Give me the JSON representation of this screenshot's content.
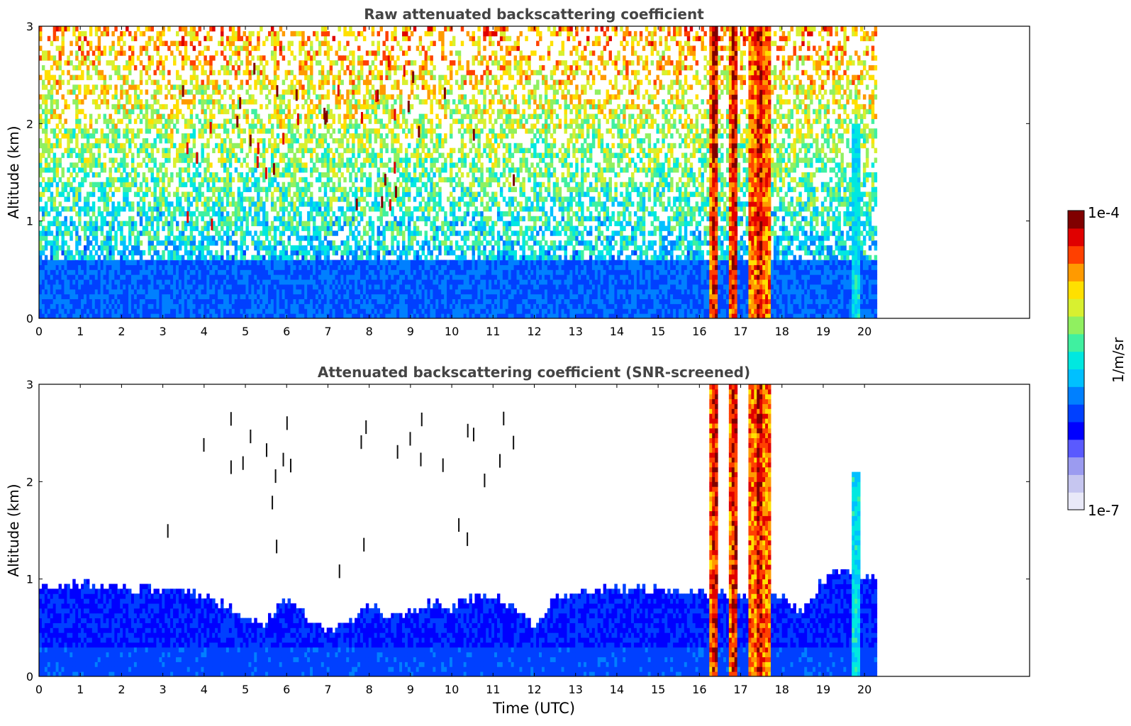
{
  "chart_data": [
    {
      "type": "heatmap",
      "title": "Raw attenuated backscattering coefficient",
      "xlabel": "",
      "ylabel": "Altitude (km)",
      "xlim": [
        0,
        24
      ],
      "ylim": [
        0,
        3
      ],
      "x_ticks": [
        0,
        1,
        2,
        3,
        4,
        5,
        6,
        7,
        8,
        9,
        10,
        11,
        12,
        13,
        14,
        15,
        16,
        17,
        18,
        19,
        20
      ],
      "y_ticks": [
        0,
        1,
        2,
        3
      ],
      "data_end_time": 20.3,
      "features": [
        {
          "kind": "boundary_layer",
          "x_range": [
            0,
            20.3
          ],
          "top": 0.6
        },
        {
          "kind": "cloud_columns",
          "x_ranges": [
            [
              16.25,
              16.45
            ],
            [
              16.7,
              16.95
            ],
            [
              17.2,
              17.7
            ]
          ],
          "y_range": [
            0,
            3
          ]
        },
        {
          "kind": "aerosol_column",
          "x_range": [
            19.7,
            19.9
          ],
          "y_range": [
            0,
            2.0
          ]
        },
        {
          "kind": "scattered_high_returns",
          "x_range": [
            3,
            12
          ],
          "y_range": [
            0.9,
            2.7
          ]
        }
      ]
    },
    {
      "type": "heatmap",
      "title": "Attenuated backscattering coefficient (SNR-screened)",
      "xlabel": "Time (UTC)",
      "ylabel": "Altitude (km)",
      "xlim": [
        0,
        24
      ],
      "ylim": [
        0,
        3
      ],
      "x_ticks": [
        0,
        1,
        2,
        3,
        4,
        5,
        6,
        7,
        8,
        9,
        10,
        11,
        12,
        13,
        14,
        15,
        16,
        17,
        18,
        19,
        20
      ],
      "y_ticks": [
        0,
        1,
        2,
        3
      ],
      "data_end_time": 20.3,
      "mixing_layer_top_km": [
        [
          0,
          0.95
        ],
        [
          1,
          0.95
        ],
        [
          2,
          0.9
        ],
        [
          3,
          0.9
        ],
        [
          4,
          0.85
        ],
        [
          5,
          0.6
        ],
        [
          5.5,
          0.55
        ],
        [
          6,
          0.8
        ],
        [
          6.5,
          0.6
        ],
        [
          7,
          0.5
        ],
        [
          7.5,
          0.55
        ],
        [
          8,
          0.75
        ],
        [
          8.5,
          0.6
        ],
        [
          9,
          0.65
        ],
        [
          9.5,
          0.75
        ],
        [
          10,
          0.7
        ],
        [
          10.5,
          0.8
        ],
        [
          11,
          0.85
        ],
        [
          11.5,
          0.7
        ],
        [
          12,
          0.5
        ],
        [
          12.5,
          0.8
        ],
        [
          13,
          0.85
        ],
        [
          14,
          0.9
        ],
        [
          15,
          0.9
        ],
        [
          16,
          0.85
        ],
        [
          18,
          0.8
        ],
        [
          18.5,
          0.65
        ],
        [
          19,
          1.0
        ],
        [
          19.5,
          1.1
        ],
        [
          20.3,
          1.0
        ]
      ],
      "features": [
        {
          "kind": "cloud_columns",
          "x_ranges": [
            [
              16.25,
              16.45
            ],
            [
              16.7,
              16.95
            ],
            [
              17.2,
              17.7
            ]
          ],
          "y_range": [
            0,
            3
          ]
        },
        {
          "kind": "aerosol_column",
          "x_range": [
            19.7,
            19.9
          ],
          "y_range": [
            0,
            2.1
          ]
        }
      ]
    }
  ],
  "colorbar": {
    "label": "1/m/sr",
    "min_label": "1e-7",
    "max_label": "1e-4",
    "scale": "log",
    "colors": [
      "#e9e9f8",
      "#c6c6f0",
      "#9b9bf0",
      "#5a5aff",
      "#0000ff",
      "#0040ff",
      "#0080ff",
      "#00c0ff",
      "#00e8e0",
      "#40f0a0",
      "#90f060",
      "#d8f030",
      "#ffe000",
      "#ff9a00",
      "#ff4000",
      "#e00000",
      "#800000"
    ]
  }
}
